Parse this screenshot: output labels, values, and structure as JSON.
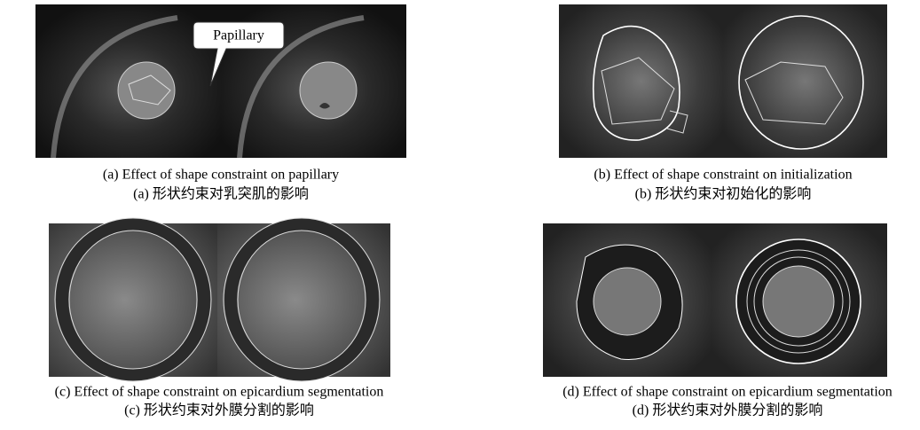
{
  "panels": [
    {
      "callout": "Papillary",
      "caption_en": "(a) Effect of shape constraint on papillary",
      "caption_zh": "(a)  形状约束对乳突肌的影响"
    },
    {
      "caption_en": "(b) Effect of shape constraint on initialization",
      "caption_zh": "(b)  形状约束对初始化的影响"
    },
    {
      "caption_en": "(c) Effect of shape constraint on epicardium segmentation",
      "caption_zh": "(c)  形状约束对外膜分割的影响"
    },
    {
      "caption_en": "(d) Effect of shape constraint on epicardium segmentation",
      "caption_zh": "(d)  形状约束对外膜分割的影响"
    }
  ]
}
